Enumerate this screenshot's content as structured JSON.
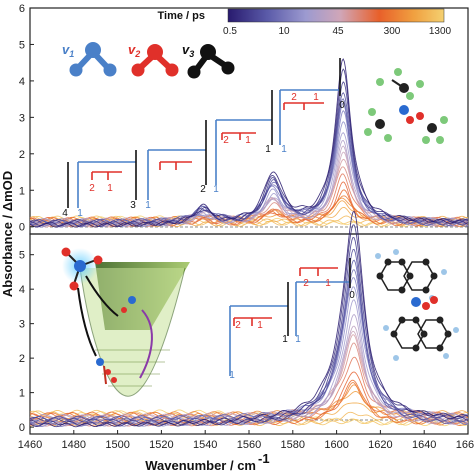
{
  "chart_data": {
    "type": "line",
    "xlabel": "Wavenumber / cm",
    "xlabel_sup": "-1",
    "ylabel": "Absorbance / ΔmOD",
    "xlim": [
      1460,
      1660
    ],
    "x_ticks": [
      "1460",
      "1480",
      "1500",
      "1520",
      "1540",
      "1560",
      "1580",
      "1600",
      "1620",
      "1640",
      "1660"
    ],
    "colorbar": {
      "title": "Time / ps",
      "ticks": [
        "0.5",
        "10",
        "45",
        "300",
        "1300"
      ],
      "colors": [
        "#281a6e",
        "#5a5aa8",
        "#9c9ad0",
        "#d0a6b8",
        "#e8602a",
        "#f0a040",
        "#f4d070"
      ]
    },
    "legend_modes": [
      {
        "label": "v",
        "sub": "1",
        "color": "#4a80c8"
      },
      {
        "label": "v",
        "sub": "2",
        "color": "#e0302a"
      },
      {
        "label": "v",
        "sub": "3",
        "color": "#111111"
      }
    ],
    "panels": [
      {
        "name": "top",
        "ylim": [
          -0.2,
          6
        ],
        "y_ticks": [
          "0",
          "1",
          "2",
          "3",
          "4",
          "5",
          "6"
        ],
        "baseline_level": 0.25,
        "peaks": [
          {
            "center": 1603,
            "width": 4.5,
            "amp": 4.4
          },
          {
            "center": 1571,
            "width": 5,
            "amp": 1.35
          },
          {
            "center": 1539,
            "width": 5,
            "amp": 0.45
          }
        ],
        "ladder_labels": [
          {
            "text": "4",
            "color": "#111111"
          },
          {
            "text": "1",
            "color": "#4a80c8"
          },
          {
            "text": "2",
            "color": "#e0302a"
          },
          {
            "text": "1",
            "color": "#e0302a"
          },
          {
            "text": "3",
            "color": "#111111"
          },
          {
            "text": "1",
            "color": "#4a80c8"
          },
          {
            "text": "2",
            "color": "#111111"
          },
          {
            "text": "1",
            "color": "#4a80c8"
          },
          {
            "text": "2",
            "color": "#e0302a"
          },
          {
            "text": "1",
            "color": "#e0302a"
          },
          {
            "text": "1",
            "color": "#111111"
          },
          {
            "text": "1",
            "color": "#4a80c8"
          },
          {
            "text": "2",
            "color": "#e0302a"
          },
          {
            "text": "1",
            "color": "#e0302a"
          },
          {
            "text": "0",
            "color": "#111111"
          }
        ]
      },
      {
        "name": "bottom",
        "ylim": [
          -0.2,
          5.6
        ],
        "y_ticks": [
          "0",
          "1",
          "2",
          "3",
          "4",
          "5"
        ],
        "baseline_level": 0.45,
        "peaks": [
          {
            "center": 1608,
            "width": 5,
            "amp": 4.8
          },
          {
            "center": 1605,
            "width": 9,
            "amp": 1.4
          }
        ],
        "ladder_labels": [
          {
            "text": "2",
            "color": "#e0302a"
          },
          {
            "text": "1",
            "color": "#e0302a"
          },
          {
            "text": "1",
            "color": "#111111"
          },
          {
            "text": "1",
            "color": "#4a80c8"
          },
          {
            "text": "2",
            "color": "#e0302a"
          },
          {
            "text": "1",
            "color": "#e0302a"
          },
          {
            "text": "0",
            "color": "#111111"
          }
        ]
      }
    ]
  }
}
